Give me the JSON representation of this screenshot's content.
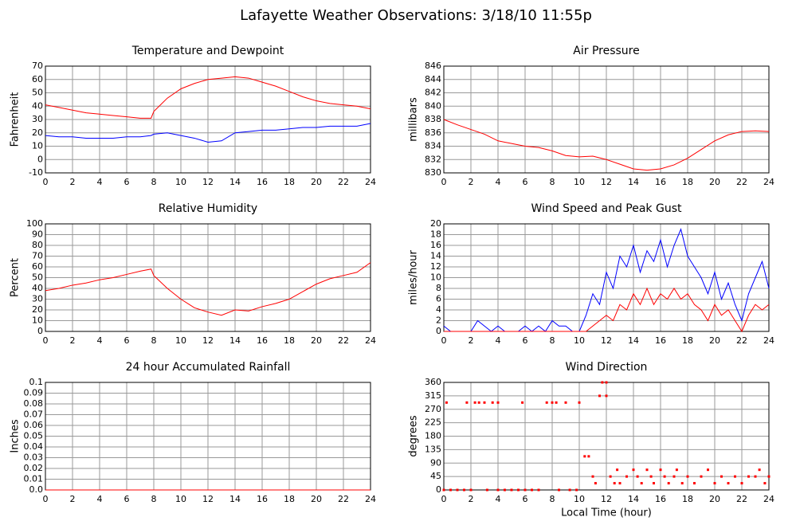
{
  "title": "Lafayette Weather Observations: 3/18/10 11:55p",
  "chart_data": [
    {
      "type": "line",
      "title": "Temperature and Dewpoint",
      "ylabel": "Fahrenheit",
      "x": [
        0,
        1,
        2,
        3,
        4,
        5,
        6,
        7,
        7.8,
        8,
        9,
        10,
        11,
        12,
        13,
        14,
        15,
        16,
        17,
        18,
        19,
        20,
        21,
        22,
        23,
        24
      ],
      "series": [
        {
          "color": "#ff0000",
          "values": [
            41,
            39,
            37,
            35,
            34,
            33,
            32,
            31,
            31,
            36,
            46,
            53,
            57,
            60,
            61,
            62,
            61,
            58,
            55,
            51,
            47,
            44,
            42,
            41,
            40,
            38
          ]
        },
        {
          "color": "#0000ff",
          "values": [
            18,
            17,
            17,
            16,
            16,
            16,
            17,
            17,
            18,
            19,
            20,
            18,
            16,
            13,
            14,
            20,
            21,
            22,
            22,
            23,
            24,
            24,
            25,
            25,
            25,
            27
          ]
        }
      ],
      "xlim": [
        0,
        24
      ],
      "xticks": [
        0,
        2,
        4,
        6,
        8,
        10,
        12,
        14,
        16,
        18,
        20,
        22,
        24
      ],
      "ylim": [
        -10,
        70
      ],
      "yticks": [
        -10,
        0,
        10,
        20,
        30,
        40,
        50,
        60,
        70
      ],
      "grid": true
    },
    {
      "type": "line",
      "title": "Air Pressure",
      "ylabel": "millibars",
      "x": [
        0,
        1,
        2,
        3,
        4,
        5,
        6,
        7,
        8,
        9,
        10,
        11,
        12,
        13,
        14,
        15,
        16,
        17,
        18,
        19,
        20,
        21,
        22,
        23,
        24
      ],
      "series": [
        {
          "color": "#ff0000",
          "values": [
            838,
            837.2,
            836.5,
            835.8,
            834.8,
            834.4,
            834,
            833.8,
            833.3,
            832.6,
            832.4,
            832.5,
            832,
            831.3,
            830.6,
            830.4,
            830.6,
            831.2,
            832.2,
            833.5,
            834.8,
            835.7,
            836.2,
            836.3,
            836.2
          ]
        }
      ],
      "xlim": [
        0,
        24
      ],
      "xticks": [
        0,
        2,
        4,
        6,
        8,
        10,
        12,
        14,
        16,
        18,
        20,
        22,
        24
      ],
      "ylim": [
        830,
        846
      ],
      "yticks": [
        830,
        832,
        834,
        836,
        838,
        840,
        842,
        844,
        846
      ],
      "grid": true
    },
    {
      "type": "line",
      "title": "Relative Humidity",
      "ylabel": "Percent",
      "x": [
        0,
        1,
        2,
        3,
        4,
        5,
        6,
        7,
        7.8,
        8,
        9,
        10,
        11,
        12,
        13,
        14,
        15,
        16,
        17,
        18,
        19,
        20,
        21,
        22,
        23,
        24
      ],
      "series": [
        {
          "color": "#ff0000",
          "values": [
            38,
            40,
            43,
            45,
            48,
            50,
            53,
            56,
            58,
            52,
            40,
            30,
            22,
            18,
            15,
            20,
            19,
            23,
            26,
            30,
            37,
            44,
            49,
            52,
            55,
            64
          ]
        }
      ],
      "xlim": [
        0,
        24
      ],
      "xticks": [
        0,
        2,
        4,
        6,
        8,
        10,
        12,
        14,
        16,
        18,
        20,
        22,
        24
      ],
      "ylim": [
        0,
        100
      ],
      "yticks": [
        0,
        10,
        20,
        30,
        40,
        50,
        60,
        70,
        80,
        90,
        100
      ],
      "grid": true
    },
    {
      "type": "line",
      "title": "Wind Speed and Peak Gust",
      "ylabel": "miles/hour",
      "x": [
        0,
        0.5,
        1,
        1.5,
        2,
        2.5,
        3,
        3.5,
        4,
        4.5,
        5,
        5.5,
        6,
        6.5,
        7,
        7.5,
        8,
        8.5,
        9,
        9.5,
        10,
        10.5,
        11,
        11.5,
        12,
        12.5,
        13,
        13.5,
        14,
        14.5,
        15,
        15.5,
        16,
        16.5,
        17,
        17.5,
        18,
        18.5,
        19,
        19.5,
        20,
        20.5,
        21,
        21.5,
        22,
        22.5,
        23,
        23.5,
        24
      ],
      "series": [
        {
          "color": "#0000ff",
          "values": [
            1,
            0,
            0,
            0,
            0,
            2,
            1,
            0,
            1,
            0,
            0,
            0,
            1,
            0,
            1,
            0,
            2,
            1,
            1,
            0,
            0,
            3,
            7,
            5,
            11,
            8,
            14,
            12,
            16,
            11,
            15,
            13,
            17,
            12,
            16,
            19,
            14,
            12,
            10,
            7,
            11,
            6,
            9,
            5,
            2,
            7,
            10,
            13,
            8
          ]
        },
        {
          "color": "#ff0000",
          "values": [
            0,
            0,
            0,
            0,
            0,
            0,
            0,
            0,
            0,
            0,
            0,
            0,
            0,
            0,
            0,
            0,
            0,
            0,
            0,
            0,
            0,
            0,
            1,
            2,
            3,
            2,
            5,
            4,
            7,
            5,
            8,
            5,
            7,
            6,
            8,
            6,
            7,
            5,
            4,
            2,
            5,
            3,
            4,
            2,
            0,
            3,
            5,
            4,
            5
          ]
        }
      ],
      "xlim": [
        0,
        24
      ],
      "xticks": [
        0,
        2,
        4,
        6,
        8,
        10,
        12,
        14,
        16,
        18,
        20,
        22,
        24
      ],
      "ylim": [
        0,
        20
      ],
      "yticks": [
        0,
        2,
        4,
        6,
        8,
        10,
        12,
        14,
        16,
        18,
        20
      ],
      "grid": true
    },
    {
      "type": "line",
      "title": "24 hour Accumulated Rainfall",
      "ylabel": "Inches",
      "x": [
        0,
        24
      ],
      "series": [
        {
          "color": "#ff0000",
          "values": [
            0,
            0
          ]
        }
      ],
      "xlim": [
        0,
        24
      ],
      "xticks": [
        0,
        2,
        4,
        6,
        8,
        10,
        12,
        14,
        16,
        18,
        20,
        22,
        24
      ],
      "ylim": [
        0,
        0.1
      ],
      "yticks": [
        {
          "value": 0,
          "label": "0.0"
        },
        0.01,
        0.02,
        0.03,
        0.04,
        0.05,
        0.06,
        0.07,
        0.08,
        0.09,
        0.1
      ],
      "grid": true
    },
    {
      "type": "scatter",
      "title": "Wind Direction",
      "ylabel": "degrees",
      "xlabel": "Local Time (hour)",
      "x": [
        0,
        0.2,
        0.5,
        1,
        1.5,
        1.7,
        2,
        2.3,
        2.6,
        3,
        3.2,
        3.6,
        4,
        4,
        4.5,
        5,
        5.5,
        5.8,
        6,
        6.5,
        7,
        7.6,
        8,
        8.3,
        8.5,
        9,
        9.3,
        9.8,
        10,
        10.4,
        10.7,
        11,
        11.2,
        11.5,
        11.7,
        12,
        12,
        12.3,
        12.6,
        12.8,
        13,
        13.5,
        14,
        14.3,
        14.6,
        15,
        15.3,
        15.5,
        16,
        16.3,
        16.6,
        17,
        17.2,
        17.6,
        18,
        18.5,
        19,
        19.5,
        20,
        20.5,
        21,
        21.5,
        22,
        22.5,
        23,
        23.3,
        23.7,
        24
      ],
      "series": [
        {
          "color": "#ff0000",
          "values": [
            0,
            292.5,
            0,
            0,
            0,
            292.5,
            0,
            292.5,
            292.5,
            292.5,
            0,
            292.5,
            292.5,
            0,
            0,
            0,
            0,
            292.5,
            0,
            0,
            0,
            292.5,
            292.5,
            292.5,
            0,
            292.5,
            0,
            0,
            292.5,
            112.5,
            112.5,
            45,
            22.5,
            315,
            360,
            315,
            360,
            45,
            22.5,
            67.5,
            22.5,
            45,
            67.5,
            45,
            22.5,
            67.5,
            45,
            22.5,
            67.5,
            45,
            22.5,
            45,
            67.5,
            22.5,
            45,
            22.5,
            45,
            67.5,
            22.5,
            45,
            22.5,
            45,
            22.5,
            45,
            45,
            67.5,
            22.5,
            45
          ]
        }
      ],
      "xlim": [
        0,
        24
      ],
      "xticks": [
        0,
        2,
        4,
        6,
        8,
        10,
        12,
        14,
        16,
        18,
        20,
        22,
        24
      ],
      "ylim": [
        0,
        360
      ],
      "yticks": [
        0,
        45,
        90,
        135,
        180,
        225,
        270,
        315,
        360
      ],
      "grid": true
    }
  ]
}
